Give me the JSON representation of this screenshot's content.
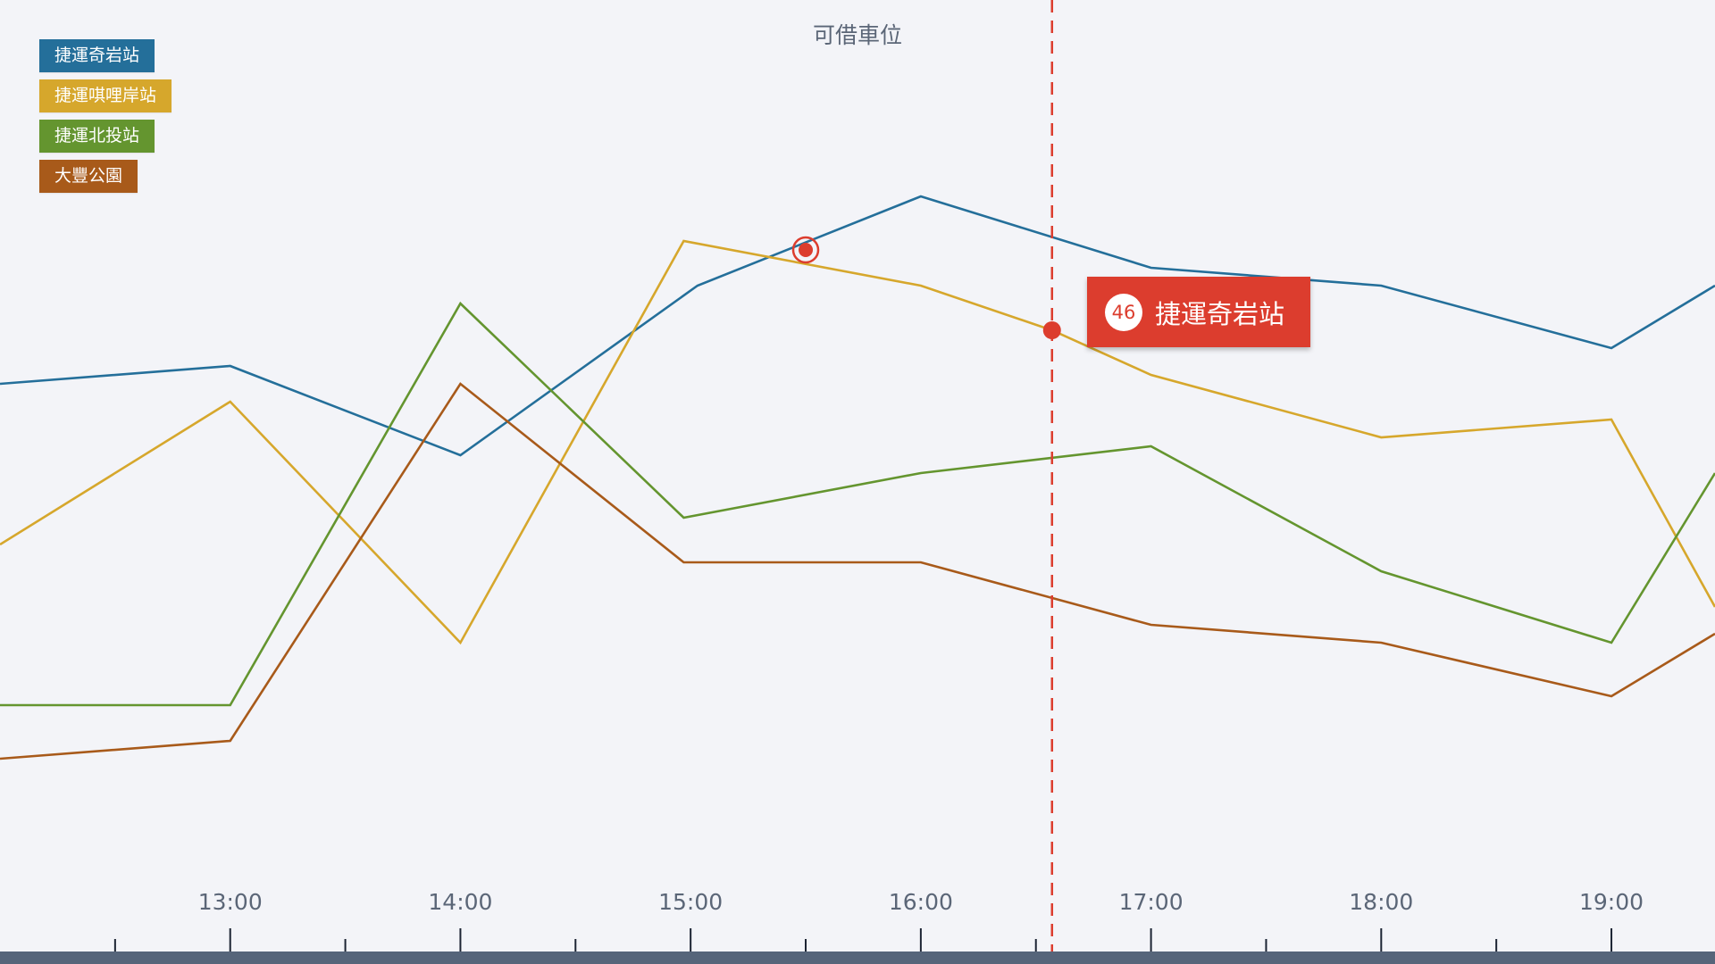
{
  "title": "可借車位",
  "colors": {
    "background": "#f3f4f8",
    "axis_bar": "#56657a",
    "cursor": "#dc3d2e",
    "tick_label": "#5b6677"
  },
  "legend": [
    {
      "label": "捷運奇岩站",
      "color": "#246f9a"
    },
    {
      "label": "捷運唭哩岸站",
      "color": "#d6a72c"
    },
    {
      "label": "捷運北投站",
      "color": "#64952f"
    },
    {
      "label": "大豐公園",
      "color": "#a85a1a"
    }
  ],
  "tooltip": {
    "value": "46",
    "label": "捷運奇岩站"
  },
  "chart_data": {
    "type": "line",
    "title": "可借車位",
    "x_unit": "hour",
    "xlim": [
      12.0,
      19.45
    ],
    "ylim": [
      0,
      100
    ],
    "x_ticks": [
      13,
      14,
      15,
      16,
      17,
      18,
      19
    ],
    "x_tick_labels": [
      "13:00",
      "14:00",
      "15:00",
      "16:00",
      "17:00",
      "18:00",
      "19:00"
    ],
    "x_minor_ticks": [
      12.5,
      13.5,
      14.5,
      15.5,
      16.5,
      17.5,
      18.5
    ],
    "cursor_x": 16.57,
    "highlight": {
      "series": "捷運奇岩站",
      "x": 15.5,
      "y": 72
    },
    "grid": false,
    "legend_position": "top-left",
    "series": [
      {
        "name": "捷運奇岩站",
        "color": "#246f9a",
        "x": [
          12.0,
          13.0,
          14.0,
          15.03,
          16.0,
          17.0,
          18.0,
          19.0,
          19.45
        ],
        "y": [
          57,
          59,
          49,
          68,
          78,
          70,
          68,
          61,
          68
        ]
      },
      {
        "name": "捷運唭哩岸站",
        "color": "#d6a72c",
        "x": [
          12.0,
          13.0,
          14.0,
          14.97,
          16.0,
          16.57,
          17.0,
          18.0,
          19.0,
          19.45
        ],
        "y": [
          39,
          55,
          28,
          73,
          68,
          63,
          58,
          51,
          53,
          32
        ]
      },
      {
        "name": "捷運北投站",
        "color": "#64952f",
        "x": [
          12.0,
          13.0,
          14.0,
          14.97,
          16.0,
          17.0,
          18.0,
          19.0,
          19.45
        ],
        "y": [
          21,
          21,
          66,
          42,
          47,
          50,
          36,
          28,
          47
        ]
      },
      {
        "name": "大豐公園",
        "color": "#a85a1a",
        "x": [
          12.0,
          13.0,
          14.0,
          14.97,
          16.0,
          17.0,
          18.0,
          19.0,
          19.45
        ],
        "y": [
          15,
          17,
          57,
          37,
          37,
          30,
          28,
          22,
          29
        ]
      }
    ]
  }
}
